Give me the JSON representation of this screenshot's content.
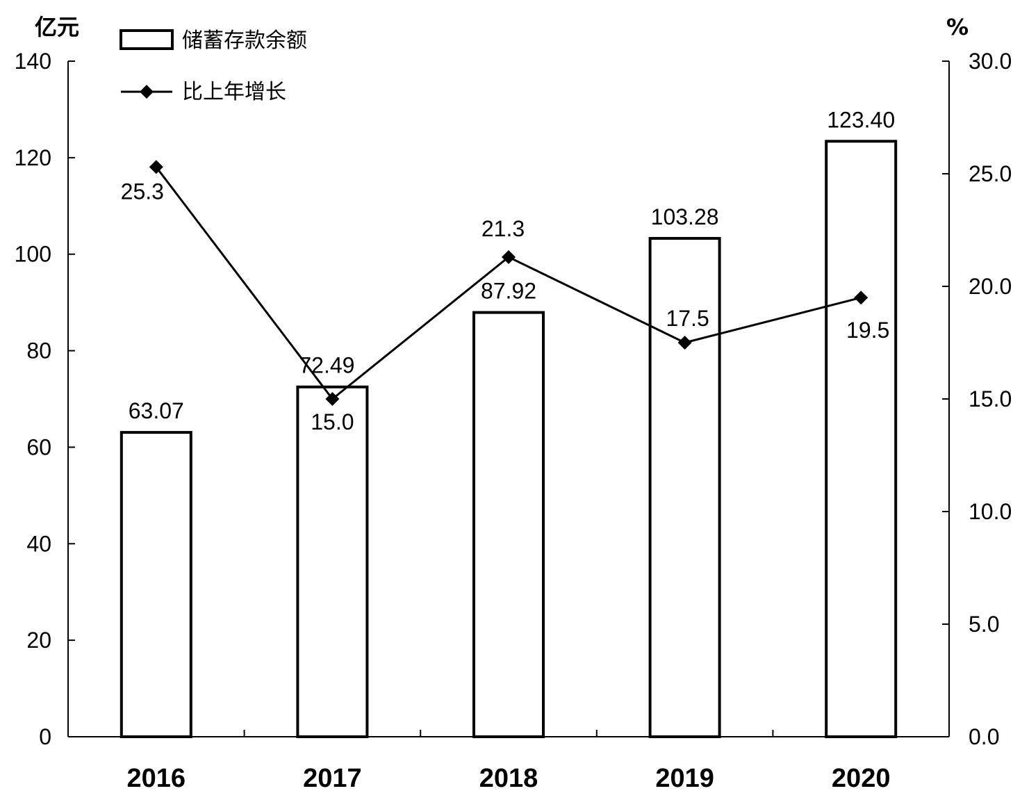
{
  "chart_data": {
    "type": "bar",
    "categories": [
      "2016",
      "2017",
      "2018",
      "2019",
      "2020"
    ],
    "series": [
      {
        "name": "储蓄存款余额",
        "type": "bar",
        "axis": "left",
        "values": [
          63.07,
          72.49,
          87.92,
          103.28,
          123.4
        ],
        "labels": [
          "63.07",
          "72.49",
          "87.92",
          "103.28",
          "123.40"
        ]
      },
      {
        "name": "比上年增长",
        "type": "line",
        "axis": "right",
        "values": [
          25.3,
          15.0,
          21.3,
          17.5,
          19.5
        ],
        "labels": [
          "25.3",
          "15.0",
          "21.3",
          "17.5",
          "19.5"
        ]
      }
    ],
    "left_axis": {
      "unit": "亿元",
      "ylim": [
        0,
        140
      ],
      "ticks": [
        "0",
        "20",
        "40",
        "60",
        "80",
        "100",
        "120",
        "140"
      ]
    },
    "right_axis": {
      "unit": "%",
      "ylim": [
        0,
        30
      ],
      "ticks": [
        "0.0",
        "5.0",
        "10.0",
        "15.0",
        "20.0",
        "25.0",
        "30.0"
      ]
    },
    "legend_position": "top-left",
    "grid": false,
    "colors": {
      "bar_fill": "#ffffff",
      "bar_stroke": "#000000",
      "line": "#000000",
      "marker": "#000000"
    }
  }
}
